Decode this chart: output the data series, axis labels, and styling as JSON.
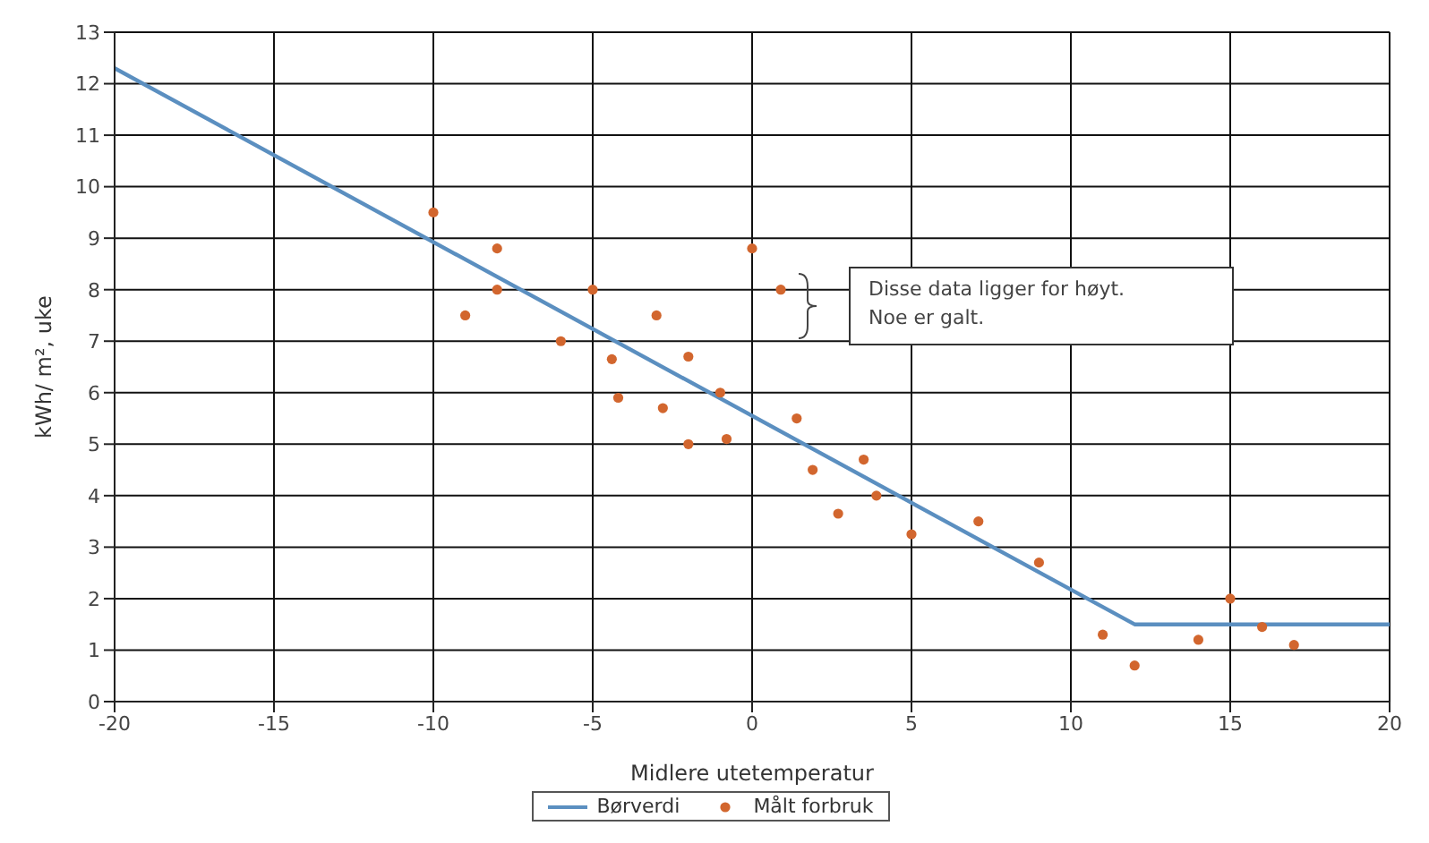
{
  "chart_data": {
    "type": "scatter",
    "xlabel": "Midlere utetemperatur",
    "ylabel": "kWh/ m², uke",
    "xlim": [
      -20,
      20
    ],
    "xticks": [
      -20,
      -15,
      -10,
      -5,
      0,
      5,
      10,
      15,
      20
    ],
    "ylim": [
      0,
      13
    ],
    "yticks": [
      0,
      1,
      2,
      3,
      4,
      5,
      6,
      7,
      8,
      9,
      10,
      11,
      12,
      13
    ],
    "grid": true,
    "legend": "bottom",
    "series": [
      {
        "name": "Børverdi",
        "type": "line",
        "color": "#5b8fc0",
        "marker": "none",
        "line_style": "solid",
        "x": [
          -20,
          12,
          20
        ],
        "values": [
          12.3,
          1.5,
          1.5
        ]
      },
      {
        "name": "Målt forbruk",
        "color": "#d2662e",
        "marker": "circle",
        "x": [
          -10,
          -9,
          -8,
          -8,
          -6,
          -5,
          -4.4,
          -4.2,
          -3,
          -2.8,
          -2,
          -2,
          -1,
          -0.8,
          0,
          0.9,
          1.4,
          1.9,
          2.7,
          3.5,
          3.9,
          5,
          7.1,
          9,
          11,
          12,
          14,
          15,
          16,
          17
        ],
        "values": [
          9.5,
          7.5,
          8.8,
          8.0,
          7.0,
          8.0,
          6.65,
          5.9,
          7.5,
          5.7,
          6.7,
          5.0,
          6.0,
          5.1,
          8.8,
          8.0,
          5.5,
          4.5,
          3.65,
          4.7,
          4.0,
          3.25,
          3.5,
          2.7,
          1.3,
          0.7,
          1.2,
          2.0,
          1.45,
          1.1
        ]
      }
    ],
    "annotations": [
      "Disse data ligger for høyt.\nNoe er galt."
    ]
  }
}
